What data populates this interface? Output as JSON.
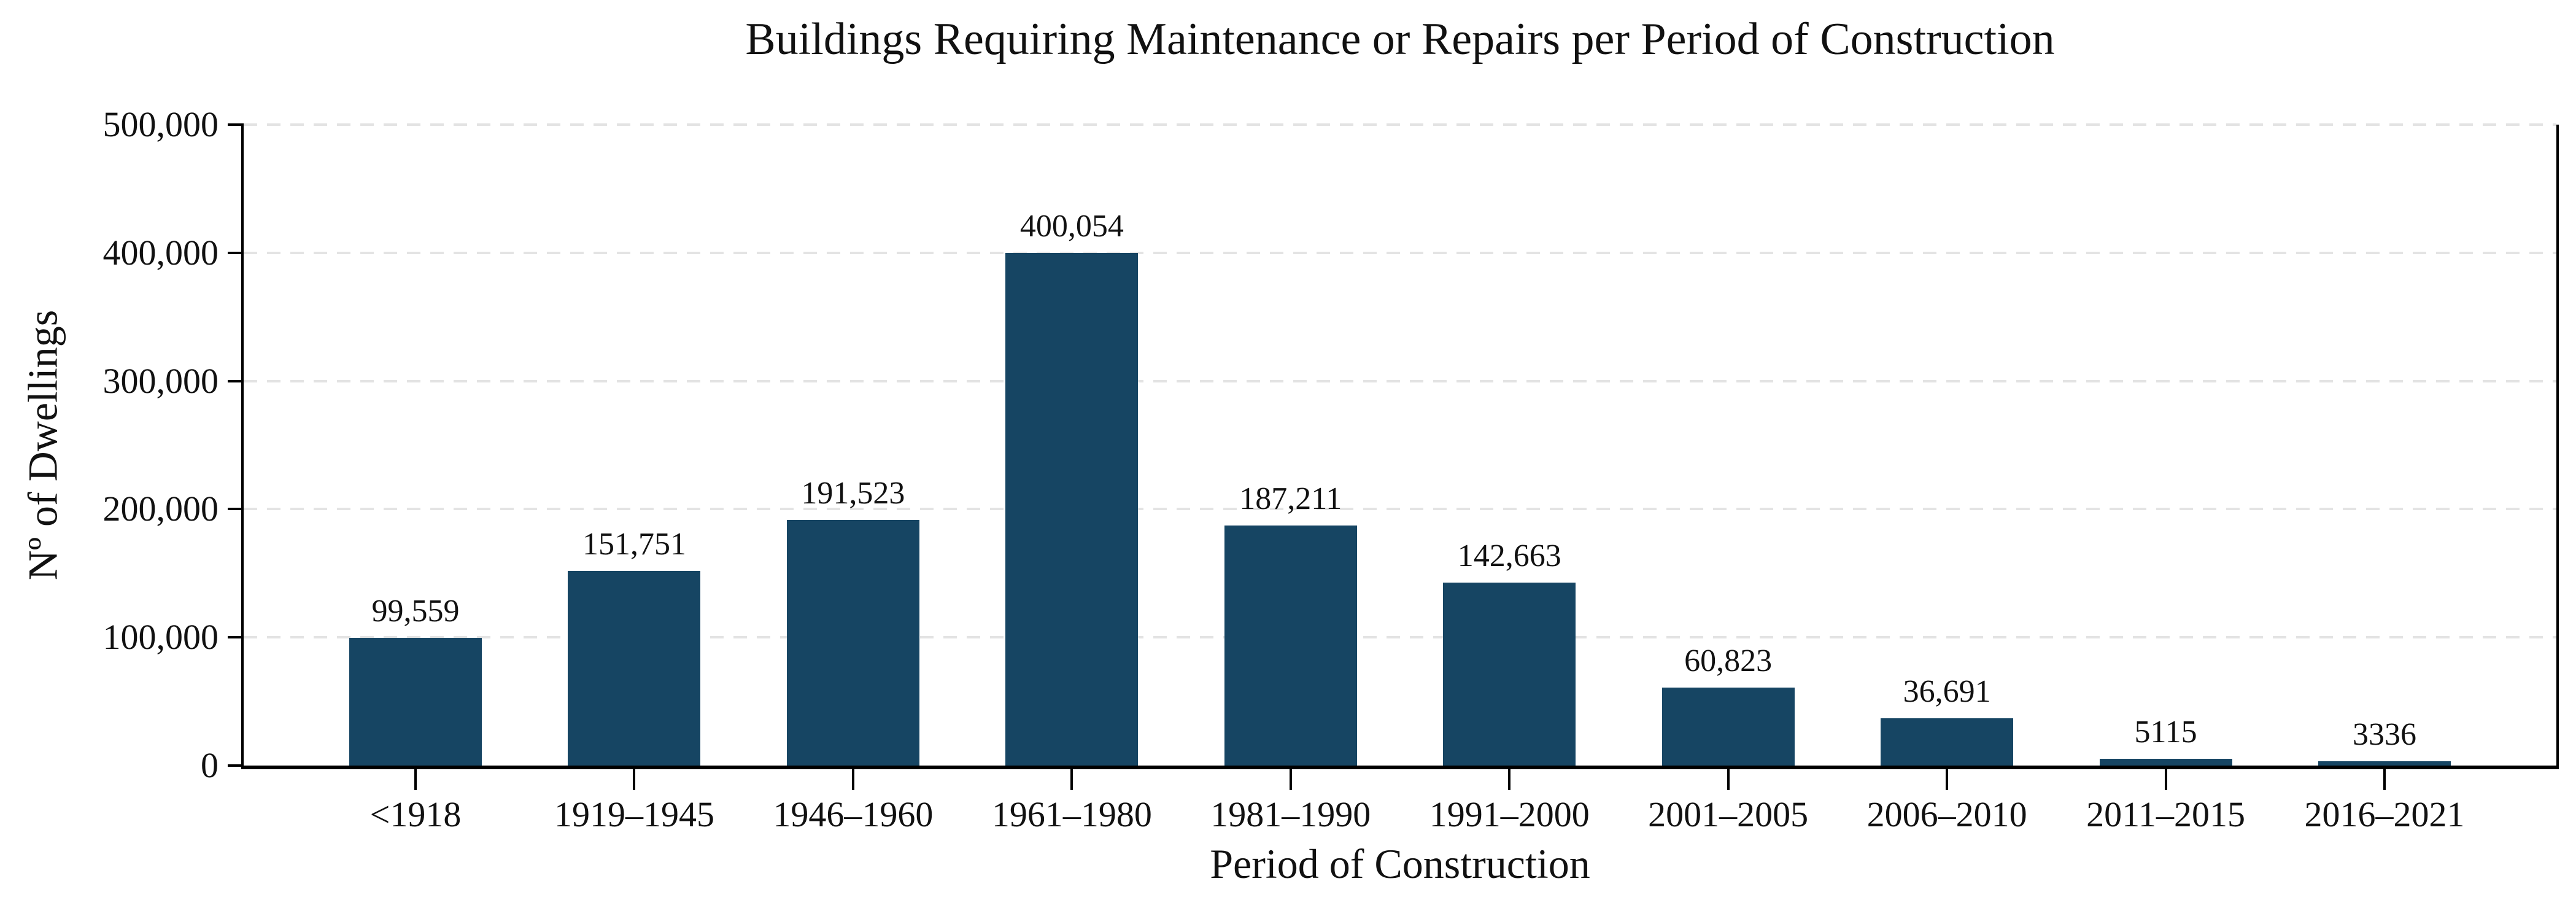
{
  "figure": {
    "background": "#ffffff"
  },
  "chart_data": {
    "type": "bar",
    "title": "Buildings Requiring Maintenance or Repairs per Period of Construction",
    "xlabel": "Period of Construction",
    "ylabel": "Nº of Dwellings",
    "categories": [
      "<1918",
      "1919–1945",
      "1946–1960",
      "1961–1980",
      "1981–1990",
      "1991–2000",
      "2001–2005",
      "2006–2010",
      "2011–2015",
      "2016–2021"
    ],
    "values": [
      99559,
      151751,
      191523,
      400054,
      187211,
      142663,
      60823,
      36691,
      5115,
      3336
    ],
    "value_labels": [
      "99,559",
      "151,751",
      "191,523",
      "400,054",
      "187,211",
      "142,663",
      "60,823",
      "36,691",
      "5115",
      "3336"
    ],
    "ylim": [
      0,
      500000
    ],
    "y_ticks": [
      {
        "value": 0,
        "label": "0"
      },
      {
        "value": 100000,
        "label": "100,000"
      },
      {
        "value": 200000,
        "label": "200,000"
      },
      {
        "value": 300000,
        "label": "300,000"
      },
      {
        "value": 400000,
        "label": "400,000"
      },
      {
        "value": 500000,
        "label": "500,000"
      }
    ],
    "grid": "horizontal-dashed",
    "legend": "none",
    "colors": {
      "bar": "#164563",
      "gridline": "#e3e3e3",
      "axis": "#000000",
      "text": "#111111"
    }
  }
}
